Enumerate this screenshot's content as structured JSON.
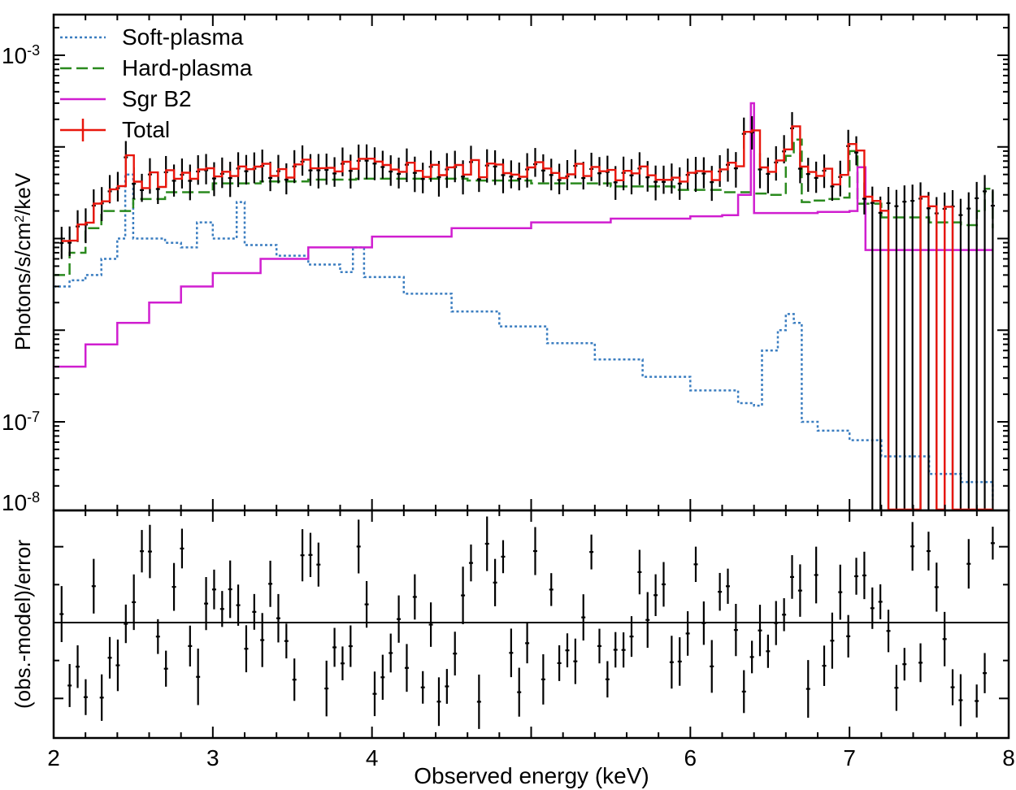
{
  "chart_data": {
    "type": "line",
    "title": "",
    "colors": {
      "soft": "#3a7dc0",
      "hard": "#2a8a1e",
      "sgr": "#d01ed0",
      "total": "#e8160c",
      "data": "#000000"
    },
    "xlabel": "Observed energy (keV)",
    "x_axis": {
      "scale": "linear",
      "xlim": [
        2,
        8
      ],
      "ticks": [
        {
          "value": 2,
          "label": "2"
        },
        {
          "value": 3,
          "label": "3"
        },
        {
          "value": 4,
          "label": "4"
        },
        {
          "value": 6,
          "label": "6"
        },
        {
          "value": 7,
          "label": "7"
        },
        {
          "value": 8,
          "label": "8"
        }
      ]
    },
    "top_panel": {
      "ylabel_prefix": "Photons/s/cm",
      "ylabel_exp": "2",
      "ylabel_suffix": "/keV",
      "yscale": "log",
      "ylim": [
        1e-08,
        0.003
      ],
      "ytick_labels": [
        {
          "value": 0.001,
          "base": "10",
          "exp": "-3"
        },
        {
          "value": 1e-07,
          "base": "10",
          "exp": "-7"
        },
        {
          "value": 1e-08,
          "base": "10",
          "exp": "-8"
        }
      ],
      "legend": [
        {
          "key": "soft",
          "label": "Soft-plasma",
          "style": "dotted"
        },
        {
          "key": "hard",
          "label": "Hard-plasma",
          "style": "dashed"
        },
        {
          "key": "sgr",
          "label": "Sgr B2",
          "style": "solid"
        },
        {
          "key": "total",
          "label": "Total",
          "style": "errorbar"
        }
      ],
      "series": [
        {
          "name": "Soft-plasma",
          "x": [
            2.0,
            2.1,
            2.2,
            2.3,
            2.4,
            2.45,
            2.5,
            2.6,
            2.7,
            2.8,
            2.9,
            3.0,
            3.1,
            3.15,
            3.2,
            3.4,
            3.6,
            3.8,
            3.88,
            3.95,
            4.2,
            4.5,
            4.8,
            5.1,
            5.4,
            5.7,
            6.0,
            6.3,
            6.4,
            6.45,
            6.55,
            6.6,
            6.65,
            6.7,
            6.8,
            7.0,
            7.2,
            7.5,
            7.7,
            7.9
          ],
          "y": [
            3e-06,
            3.5e-06,
            4e-06,
            6e-06,
            1e-05,
            5e-05,
            1e-05,
            1e-05,
            9e-06,
            8e-06,
            1.5e-05,
            1e-05,
            1e-05,
            2.5e-05,
            8.5e-06,
            6.5e-06,
            5.2e-06,
            4.3e-06,
            8e-06,
            3.8e-06,
            2.5e-06,
            1.6e-06,
            1.1e-06,
            7.2e-07,
            4.8e-07,
            3.1e-07,
            2.2e-07,
            1.6e-07,
            1.5e-07,
            6e-07,
            1e-06,
            1.5e-06,
            1.2e-06,
            1e-07,
            8e-08,
            6.3e-08,
            4.2e-08,
            2.7e-08,
            2.2e-08,
            1.4e-08
          ]
        },
        {
          "name": "Hard-plasma",
          "x": [
            2.0,
            2.1,
            2.2,
            2.3,
            2.5,
            2.7,
            3.0,
            3.3,
            3.6,
            3.9,
            4.2,
            4.6,
            5.0,
            5.5,
            5.9,
            6.2,
            6.4,
            6.5,
            6.6,
            6.65,
            6.7,
            6.75,
            6.85,
            6.95,
            7.0,
            7.05,
            7.2,
            7.5,
            7.7,
            7.8,
            7.85,
            7.9
          ],
          "y": [
            4e-06,
            7e-06,
            1.3e-05,
            2e-05,
            2.7e-05,
            3.2e-05,
            4e-05,
            4.2e-05,
            4.4e-05,
            4.5e-05,
            4.5e-05,
            4.3e-05,
            4e-05,
            3.7e-05,
            3.4e-05,
            3.2e-05,
            3.1e-05,
            3e-05,
            8e-05,
            0.00012,
            2.5e-05,
            2.6e-05,
            2.7e-05,
            2.8e-05,
            9e-05,
            2.4e-05,
            1.7e-05,
            1.5e-05,
            1.4e-05,
            2e-05,
            3.5e-05,
            1.3e-05
          ]
        },
        {
          "name": "Sgr B2",
          "x": [
            2.0,
            2.2,
            2.4,
            2.6,
            2.8,
            3.0,
            3.3,
            3.6,
            4.0,
            4.5,
            5.0,
            5.5,
            6.0,
            6.2,
            6.3,
            6.38,
            6.4,
            6.5,
            6.8,
            7.0,
            7.05,
            7.1,
            7.5,
            7.9
          ],
          "y": [
            4e-07,
            7e-07,
            1.2e-06,
            2e-06,
            3e-06,
            4.2e-06,
            6e-06,
            8e-06,
            1.05e-05,
            1.3e-05,
            1.5e-05,
            1.65e-05,
            1.75e-05,
            1.8e-05,
            3e-05,
            0.0003,
            1.9e-05,
            1.9e-05,
            1.95e-05,
            2e-05,
            6e-05,
            7.5e-06,
            7.5e-06,
            7.5e-06
          ]
        }
      ]
    },
    "bottom_panel": {
      "ylabel": "(obs.-model)/error",
      "ylim": [
        -3,
        3
      ],
      "zero_line": 0
    }
  }
}
